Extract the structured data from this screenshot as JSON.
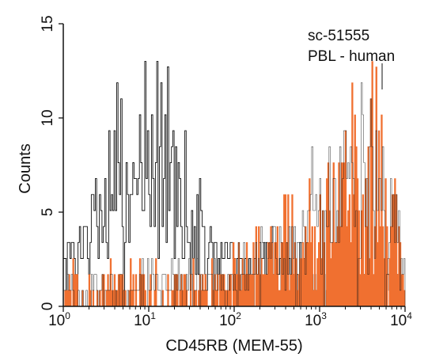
{
  "chart_data": {
    "type": "histogram",
    "annotations": [
      "sc-51555",
      "PBL - human"
    ],
    "xlabel": "CD45RB (MEM-55)",
    "ylabel": "Counts",
    "x_scale": "log",
    "xlim": [
      1,
      10000
    ],
    "ylim": [
      0,
      15
    ],
    "x_ticks": [
      {
        "value": 1,
        "base": "10",
        "exp": "0"
      },
      {
        "value": 10,
        "base": "10",
        "exp": "1"
      },
      {
        "value": 100,
        "base": "10",
        "exp": "2"
      },
      {
        "value": 1000,
        "base": "10",
        "exp": "3"
      },
      {
        "value": 10000,
        "base": "10",
        "exp": "4"
      }
    ],
    "y_ticks": [
      0,
      5,
      10,
      15
    ],
    "grid": false,
    "legend": "none",
    "series": [
      {
        "role": "control",
        "style": "outline",
        "color": "#111111",
        "x_log10": [
          0.0,
          0.25,
          0.5,
          0.75,
          1.0,
          1.25,
          1.5,
          1.75,
          2.0,
          2.25,
          2.5,
          2.75,
          3.0,
          3.25,
          3.5,
          3.75,
          3.9
        ],
        "counts": [
          2.0,
          3.5,
          5.2,
          6.5,
          8.5,
          6.5,
          4.0,
          3.0,
          2.5,
          2.0,
          1.7,
          1.5,
          1.3,
          1.1,
          1.0,
          0.8,
          0.5
        ]
      },
      {
        "role": "CD45RB",
        "style": "filled",
        "color": "#f07030",
        "x_log10": [
          0.0,
          0.5,
          1.0,
          1.5,
          1.8,
          2.1,
          2.4,
          2.7,
          3.0,
          3.3,
          3.5,
          3.7,
          3.9,
          4.0
        ],
        "counts": [
          0.5,
          0.7,
          0.8,
          0.8,
          1.2,
          1.8,
          2.6,
          3.6,
          4.6,
          5.6,
          6.8,
          6.9,
          5.0,
          1.0
        ]
      }
    ]
  },
  "colors": {
    "axis": "#111111",
    "fill": "#f07030",
    "outline": "#111111"
  }
}
